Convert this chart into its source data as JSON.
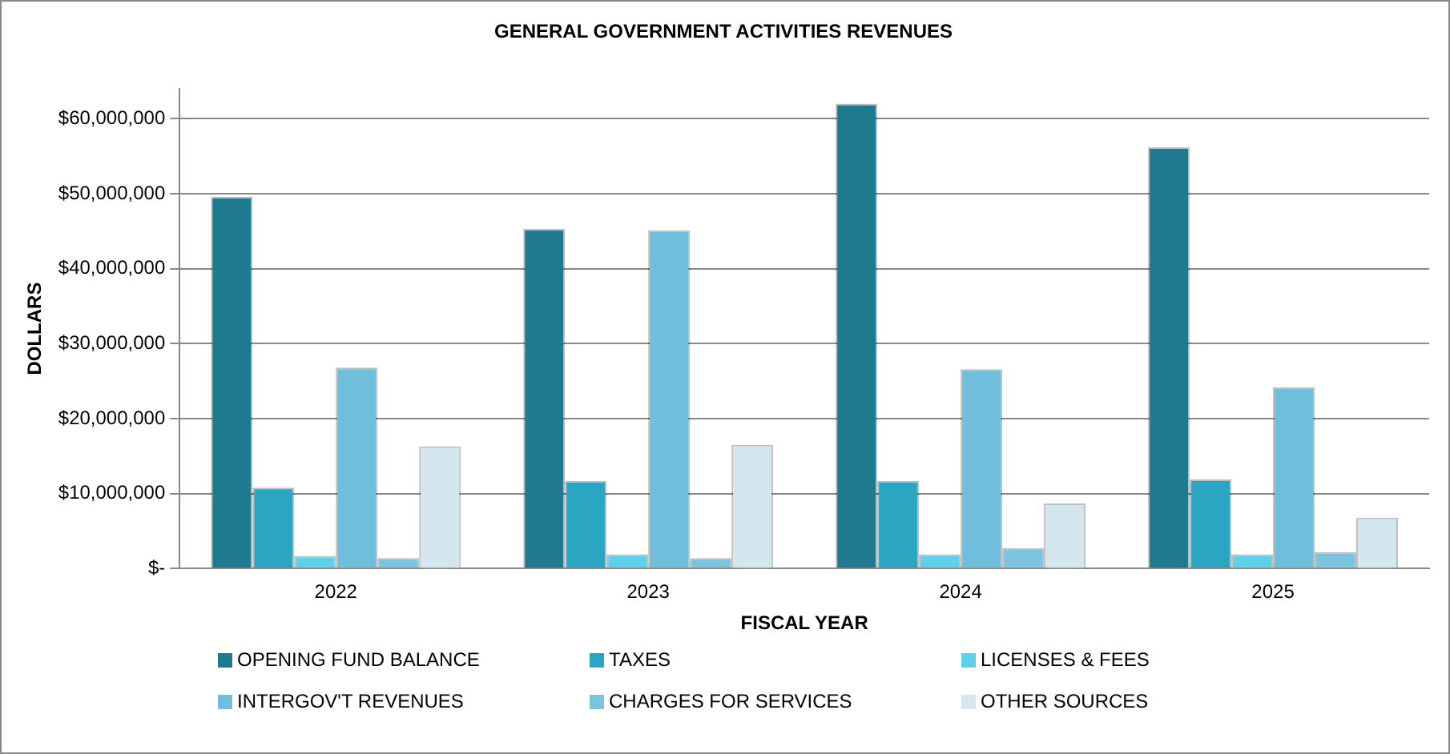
{
  "chart_data": {
    "type": "bar",
    "title": "GENERAL GOVERNMENT ACTIVITIES REVENUES",
    "xlabel": "FISCAL YEAR",
    "ylabel": "DOLLARS",
    "categories": [
      "2022",
      "2023",
      "2024",
      "2025"
    ],
    "series": [
      {
        "name": "OPENING FUND BALANCE",
        "color": "#1f7a8f",
        "values": [
          49600000,
          45300000,
          62000000,
          56200000
        ]
      },
      {
        "name": "TAXES",
        "color": "#2aa5c2",
        "values": [
          10800000,
          11700000,
          11700000,
          11900000
        ]
      },
      {
        "name": "LICENSES & FEES",
        "color": "#5fd0ea",
        "values": [
          1700000,
          1900000,
          1900000,
          1900000
        ]
      },
      {
        "name": "INTERGOV'T REVENUES",
        "color": "#6fbfdc",
        "values": [
          26800000,
          45100000,
          26600000,
          24200000
        ]
      },
      {
        "name": "CHARGES FOR SERVICES",
        "color": "#7cc4dd",
        "values": [
          1400000,
          1400000,
          2700000,
          2200000
        ]
      },
      {
        "name": "OTHER SOURCES",
        "color": "#d4e6ee",
        "values": [
          16300000,
          16500000,
          8700000,
          6800000
        ]
      }
    ],
    "ylim": [
      0,
      64000000
    ],
    "yticks": [
      {
        "value": 0,
        "label": "$-"
      },
      {
        "value": 10000000,
        "label": "$10,000,000"
      },
      {
        "value": 20000000,
        "label": "$20,000,000"
      },
      {
        "value": 30000000,
        "label": "$30,000,000"
      },
      {
        "value": 40000000,
        "label": "$40,000,000"
      },
      {
        "value": 50000000,
        "label": "$50,000,000"
      },
      {
        "value": 60000000,
        "label": "$60,000,000"
      }
    ],
    "grid": "y",
    "legend": "bottom"
  }
}
